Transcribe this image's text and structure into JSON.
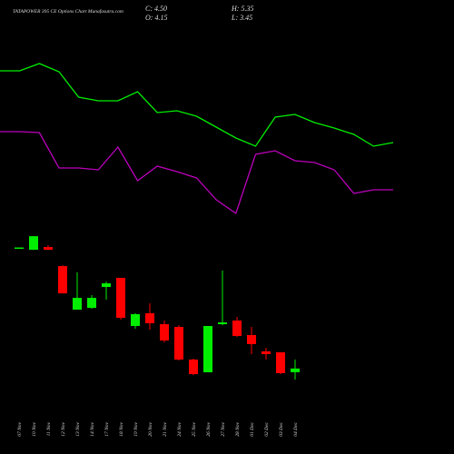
{
  "chart_data": [
    {
      "type": "candlestick",
      "title": "TATAPOWER 395 CE Options Chart Munafasutra.com",
      "ohlc_labels": [
        "C: 4.50",
        "H: 5.35",
        "O: 4.15",
        "L: 3.45"
      ],
      "categories": [
        "07 Nov",
        "10 Nov",
        "11 Nov",
        "12 Nov",
        "13 Nov",
        "14 Nov",
        "17 Nov",
        "18 Nov",
        "19 Nov",
        "20 Nov",
        "21 Nov",
        "24 Nov",
        "25 Nov",
        "26 Nov",
        "27 Nov",
        "28 Nov",
        "01 Dec",
        "02 Dec",
        "03 Dec",
        "04 Dec"
      ],
      "open": [
        15.9,
        15.78,
        16.04,
        14.23,
        10.09,
        10.26,
        12.25,
        13.11,
        8.54,
        9.75,
        8.71,
        8.45,
        5.35,
        4.14,
        8.71,
        9.06,
        7.68,
        6.13,
        6.04,
        4.15
      ],
      "high": [
        16.0,
        17.07,
        16.21,
        14.3,
        13.63,
        11.47,
        12.76,
        13.11,
        9.75,
        10.7,
        9.06,
        8.63,
        5.44,
        8.54,
        13.8,
        9.4,
        8.45,
        6.47,
        6.04,
        5.35
      ],
      "low": [
        15.9,
        15.78,
        15.78,
        11.64,
        10.09,
        10.18,
        11.04,
        9.14,
        8.28,
        8.2,
        6.99,
        5.26,
        3.88,
        4.14,
        8.63,
        7.5,
        5.87,
        5.35,
        3.97,
        3.45
      ],
      "close": [
        16.0,
        17.07,
        15.78,
        11.64,
        11.21,
        11.21,
        12.59,
        9.32,
        9.66,
        8.8,
        7.16,
        5.35,
        3.97,
        8.54,
        8.88,
        7.59,
        6.82,
        5.87,
        4.06,
        4.5
      ],
      "up_color": "#00ee00",
      "down_color": "#ff0000",
      "ylim": [
        0,
        22
      ]
    },
    {
      "type": "line",
      "x": [
        0,
        1,
        2,
        3,
        4,
        5,
        6,
        7,
        8,
        9,
        10,
        11,
        12,
        13,
        14,
        15,
        16,
        17,
        18,
        19,
        20
      ],
      "xlim": [
        0,
        20
      ],
      "ylim": [
        0,
        200
      ],
      "series": [
        {
          "color": "#00ee00",
          "values": [
            172,
            172,
            180,
            171,
            143,
            139,
            139,
            149,
            126,
            128,
            122,
            110,
            98,
            89,
            121,
            124,
            115,
            109,
            102,
            89,
            93
          ]
        },
        {
          "color": "#bb00bb",
          "values": [
            105,
            105,
            104,
            65,
            65,
            63,
            88,
            51,
            67,
            61,
            54,
            30,
            15,
            80,
            84,
            73,
            71,
            63,
            37,
            41,
            41
          ]
        }
      ]
    }
  ]
}
